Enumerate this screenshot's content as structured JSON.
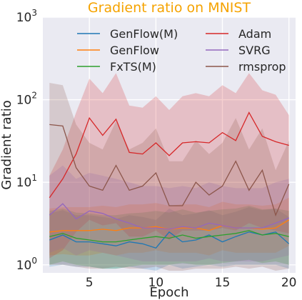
{
  "chart_data": {
    "type": "line",
    "title": "Gradient ratio on MNIST",
    "xlabel": "Epoch",
    "ylabel": "Gradient ratio",
    "yscale": "log",
    "xlim": [
      1.5,
      20.5
    ],
    "ylim": [
      0.8,
      1000
    ],
    "grid": true,
    "legend_position": "top",
    "x": [
      2,
      3,
      4,
      5,
      6,
      7,
      8,
      9,
      10,
      11,
      12,
      13,
      14,
      15,
      16,
      17,
      18,
      19,
      20
    ],
    "xticks": [
      5,
      10,
      15,
      20
    ],
    "xtick_labels": [
      "5",
      "10",
      "15",
      "20"
    ],
    "yticks": [
      1,
      10,
      100,
      1000
    ],
    "ytick_labels": [
      "10^0",
      "10^1",
      "10^2",
      "10^3"
    ],
    "ytick_parts": [
      {
        "base": "10",
        "exp": "0"
      },
      {
        "base": "10",
        "exp": "1"
      },
      {
        "base": "10",
        "exp": "2"
      },
      {
        "base": "10",
        "exp": "3"
      }
    ],
    "series": [
      {
        "name": "GenFlow(M)",
        "color": "#1f77b4",
        "values": [
          2.0,
          2.3,
          1.9,
          1.9,
          1.8,
          1.7,
          1.9,
          1.8,
          1.6,
          2.5,
          1.9,
          2.0,
          2.3,
          1.9,
          2.2,
          2.5,
          2.3,
          2.5,
          1.8
        ],
        "band_low": [
          0.95,
          1.0,
          0.95,
          0.95,
          0.9,
          0.9,
          0.95,
          0.9,
          0.85,
          1.0,
          0.9,
          0.95,
          1.0,
          0.95,
          1.0,
          1.0,
          1.0,
          1.0,
          0.9
        ],
        "band_high": [
          4.2,
          4.6,
          4.0,
          4.0,
          3.8,
          3.6,
          4.0,
          3.8,
          3.5,
          4.8,
          4.0,
          4.2,
          4.6,
          4.0,
          4.4,
          5.0,
          4.6,
          4.8,
          3.8
        ]
      },
      {
        "name": "GenFlow",
        "color": "#ff7f0e",
        "values": [
          2.5,
          2.6,
          2.6,
          2.6,
          2.7,
          2.6,
          2.8,
          2.8,
          2.9,
          2.7,
          2.8,
          2.8,
          2.6,
          3.0,
          2.8,
          2.8,
          2.7,
          2.8,
          3.5
        ],
        "band_low": [
          1.3,
          1.35,
          1.3,
          1.3,
          1.4,
          1.3,
          1.4,
          1.4,
          1.5,
          1.4,
          1.4,
          1.4,
          1.3,
          1.5,
          1.4,
          1.4,
          1.4,
          1.4,
          1.7
        ],
        "band_high": [
          4.8,
          5.0,
          5.0,
          5.0,
          5.2,
          5.0,
          5.4,
          5.4,
          5.6,
          5.2,
          5.4,
          5.4,
          5.0,
          5.8,
          5.4,
          5.4,
          5.2,
          5.4,
          6.5
        ]
      },
      {
        "name": "FxTS(M)",
        "color": "#2ca02c",
        "values": [
          2.2,
          2.4,
          2.1,
          2.0,
          1.9,
          1.9,
          2.0,
          2.1,
          2.2,
          2.1,
          2.3,
          2.1,
          2.2,
          2.3,
          2.4,
          2.6,
          2.3,
          2.4,
          2.2
        ],
        "band_low": [
          1.0,
          1.1,
          1.0,
          0.95,
          0.9,
          0.9,
          0.95,
          1.0,
          1.0,
          1.0,
          1.05,
          1.0,
          1.0,
          1.05,
          1.1,
          1.15,
          1.05,
          1.1,
          1.0
        ],
        "band_high": [
          4.5,
          4.8,
          4.3,
          4.2,
          4.0,
          4.0,
          4.2,
          4.3,
          4.5,
          4.3,
          4.7,
          4.3,
          4.5,
          4.7,
          4.8,
          5.2,
          4.7,
          4.8,
          4.5
        ]
      },
      {
        "name": "Adam",
        "color": "#d62728",
        "values": [
          6.5,
          11,
          22,
          60,
          37,
          58,
          23,
          22,
          30,
          21,
          30,
          31,
          30,
          40,
          32,
          70,
          36,
          31,
          28
        ],
        "band_low": [
          1.2,
          1.5,
          2.5,
          3.5,
          3.0,
          3.2,
          2.2,
          2.2,
          2.6,
          2.0,
          2.6,
          2.6,
          2.6,
          2.8,
          2.6,
          3.2,
          2.8,
          2.6,
          2.4
        ],
        "band_high": [
          12,
          25,
          70,
          180,
          120,
          210,
          85,
          80,
          110,
          75,
          110,
          120,
          110,
          150,
          120,
          210,
          130,
          115,
          65
        ]
      },
      {
        "name": "SVRG",
        "color": "#9467bd",
        "values": [
          4.0,
          5.5,
          3.6,
          4.5,
          4.2,
          3.6,
          3.2,
          2.8,
          2.8,
          2.7,
          2.9,
          2.8,
          3.2,
          3.0,
          2.8,
          2.8,
          2.8,
          3.2,
          3.7
        ],
        "band_low": [
          1.4,
          1.6,
          1.3,
          1.5,
          1.4,
          1.3,
          1.2,
          1.1,
          1.1,
          1.1,
          1.1,
          1.1,
          1.2,
          1.1,
          1.1,
          1.1,
          1.1,
          1.2,
          1.3
        ],
        "band_high": [
          12,
          16,
          11,
          13,
          12,
          11,
          10,
          9,
          9,
          8.5,
          9,
          8.5,
          10,
          9,
          8.5,
          8.5,
          8.5,
          10,
          11
        ]
      },
      {
        "name": "rmsprop",
        "color": "#8c564b",
        "values": [
          50,
          48,
          15,
          9,
          8,
          16,
          8,
          9,
          13,
          5.2,
          5.2,
          10,
          7,
          9,
          18,
          8,
          14,
          4.0,
          9.5
        ],
        "band_low": [
          1.0,
          1.0,
          0.95,
          0.9,
          0.9,
          0.95,
          0.9,
          0.9,
          0.95,
          0.85,
          0.85,
          0.9,
          0.9,
          0.9,
          0.95,
          0.9,
          0.95,
          0.85,
          0.9
        ],
        "band_high": [
          160,
          150,
          50,
          30,
          25,
          55,
          25,
          30,
          45,
          18,
          18,
          32,
          22,
          30,
          60,
          25,
          45,
          14,
          32
        ]
      }
    ]
  }
}
